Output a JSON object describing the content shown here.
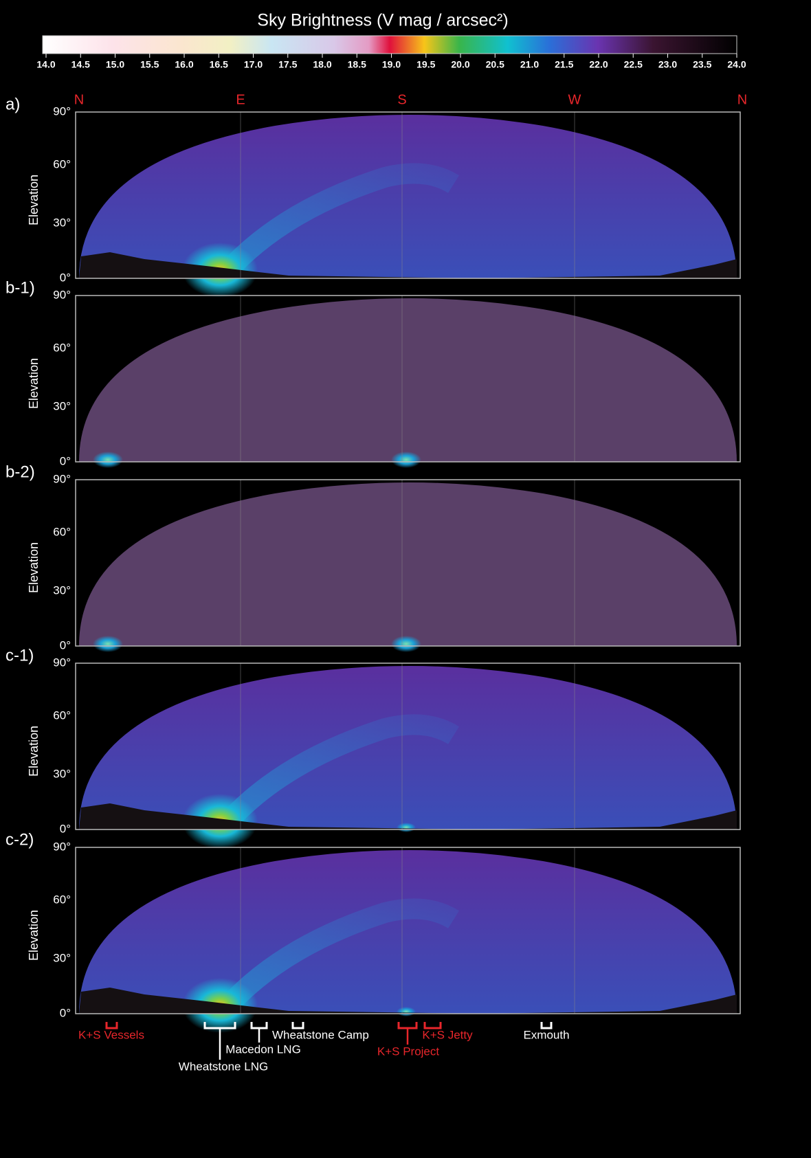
{
  "colorbar": {
    "title": "Sky Brightness (V mag / arcsec²)",
    "ticks": [
      "14.0",
      "14.5",
      "15.0",
      "15.5",
      "16.0",
      "16.5",
      "17.0",
      "17.5",
      "18.0",
      "18.5",
      "19.0",
      "19.5",
      "20.0",
      "20.5",
      "21.0",
      "21.5",
      "22.0",
      "22.5",
      "23.0",
      "23.5",
      "24.0"
    ]
  },
  "compass": [
    "N",
    "E",
    "S",
    "W",
    "N"
  ],
  "axis_label": "Elevation",
  "elevation_ticks": [
    "90°",
    "60°",
    "30°",
    "0°"
  ],
  "panels": [
    {
      "label": "a)"
    },
    {
      "label": "b-1)"
    },
    {
      "label": "b-2)"
    },
    {
      "label": "c-1)"
    },
    {
      "label": "c-2)"
    }
  ],
  "sources": [
    {
      "label": "K+S Vessels"
    },
    {
      "label": "Wheatstone LNG"
    },
    {
      "label": "Macedon LNG"
    },
    {
      "label": "Wheatstone Camp"
    },
    {
      "label": "K+S Project"
    },
    {
      "label": "K+S Jetty"
    },
    {
      "label": "Exmouth"
    }
  ]
}
